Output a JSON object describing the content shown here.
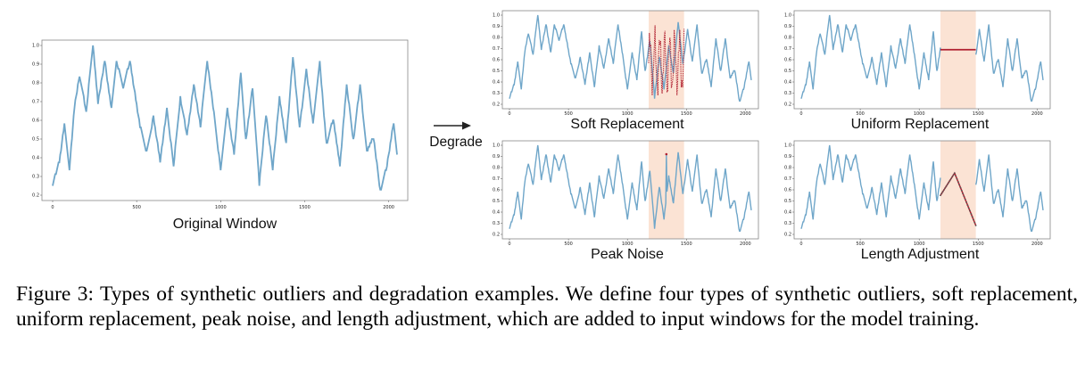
{
  "figure": {
    "arrow_label": "Degrade",
    "series_color": "#6fa6c9",
    "outlier_color": "#b01f2f",
    "highlight_color": "#fbe3d4",
    "panels": [
      {
        "id": "original",
        "title": "Original Window",
        "xticks": [
          "0",
          "500",
          "1000",
          "1500",
          "2000"
        ],
        "yticks": [
          "0.2",
          "0.3",
          "0.4",
          "0.5",
          "0.6",
          "0.7",
          "0.8",
          "0.9",
          "1.0"
        ]
      },
      {
        "id": "soft",
        "title": "Soft Replacement",
        "xticks": [
          "0",
          "500",
          "1000",
          "1500",
          "2000"
        ],
        "yticks": [
          "0.2",
          "0.3",
          "0.4",
          "0.5",
          "0.6",
          "0.7",
          "0.8",
          "0.9",
          "1.0"
        ]
      },
      {
        "id": "uniform",
        "title": "Uniform Replacement",
        "xticks": [
          "0",
          "500",
          "1000",
          "1500",
          "2000"
        ],
        "yticks": [
          "0.2",
          "0.3",
          "0.4",
          "0.5",
          "0.6",
          "0.7",
          "0.8",
          "0.9",
          "1.0"
        ]
      },
      {
        "id": "peak",
        "title": "Peak Noise",
        "xticks": [
          "0",
          "500",
          "1000",
          "1500",
          "2000"
        ],
        "yticks": [
          "0.2",
          "0.3",
          "0.4",
          "0.5",
          "0.6",
          "0.7",
          "0.8",
          "0.9",
          "1.0"
        ]
      },
      {
        "id": "length",
        "title": "Length Adjustment",
        "xticks": [
          "0",
          "500",
          "1000",
          "1500",
          "2000"
        ],
        "yticks": [
          "0.2",
          "0.3",
          "0.4",
          "0.5",
          "0.6",
          "0.7",
          "0.8",
          "0.9",
          "1.0"
        ]
      }
    ]
  },
  "chart_data": [
    {
      "type": "line",
      "panel": "original",
      "title": "Original Window",
      "ylim": [
        0.2,
        1.0
      ],
      "xlim": [
        0,
        2050
      ],
      "x": [
        0,
        40,
        70,
        100,
        130,
        160,
        200,
        240,
        270,
        310,
        350,
        380,
        420,
        460,
        490,
        520,
        560,
        600,
        640,
        680,
        720,
        760,
        800,
        840,
        880,
        920,
        960,
        1000,
        1040,
        1080,
        1120,
        1150,
        1190,
        1230,
        1270,
        1310,
        1350,
        1390,
        1430,
        1470,
        1510,
        1550,
        1590,
        1630,
        1670,
        1710,
        1750,
        1790,
        1830,
        1870,
        1910,
        1950,
        1990,
        2030,
        2050
      ],
      "values": [
        0.26,
        0.38,
        0.58,
        0.34,
        0.67,
        0.84,
        0.65,
        1.0,
        0.69,
        0.92,
        0.66,
        0.92,
        0.78,
        0.92,
        0.74,
        0.57,
        0.43,
        0.62,
        0.38,
        0.66,
        0.36,
        0.72,
        0.52,
        0.79,
        0.57,
        0.92,
        0.64,
        0.33,
        0.66,
        0.42,
        0.86,
        0.49,
        0.78,
        0.26,
        0.63,
        0.34,
        0.72,
        0.48,
        0.94,
        0.56,
        0.87,
        0.58,
        0.91,
        0.47,
        0.61,
        0.36,
        0.79,
        0.49,
        0.79,
        0.43,
        0.51,
        0.22,
        0.36,
        0.59,
        0.42
      ]
    },
    {
      "type": "line",
      "panel": "soft",
      "title": "Soft Replacement",
      "ylim": [
        0.2,
        1.0
      ],
      "xlim": [
        0,
        2050
      ],
      "outlier": "soft_replacement",
      "highlight_x": [
        1180,
        1480
      ]
    },
    {
      "type": "line",
      "panel": "uniform",
      "title": "Uniform Replacement",
      "ylim": [
        0.2,
        1.0
      ],
      "xlim": [
        0,
        2050
      ],
      "outlier": "uniform_replacement",
      "highlight_x": [
        1180,
        1480
      ],
      "constant_value": 0.69
    },
    {
      "type": "line",
      "panel": "peak",
      "title": "Peak Noise",
      "ylim": [
        0.2,
        1.0
      ],
      "xlim": [
        0,
        2050
      ],
      "outlier": "peak_noise",
      "highlight_x": [
        1180,
        1480
      ],
      "peak_x": 1330,
      "peak_value": 0.92
    },
    {
      "type": "line",
      "panel": "length",
      "title": "Length Adjustment",
      "ylim": [
        0.2,
        1.0
      ],
      "xlim": [
        0,
        2050
      ],
      "outlier": "length_adjustment",
      "highlight_x": [
        1180,
        1480
      ]
    }
  ],
  "caption": "Figure 3: Types of synthetic outliers and degradation examples. We define four types of synthetic outliers, soft replacement, uniform replacement, peak noise, and length adjustment, which are added to input windows for the model training."
}
